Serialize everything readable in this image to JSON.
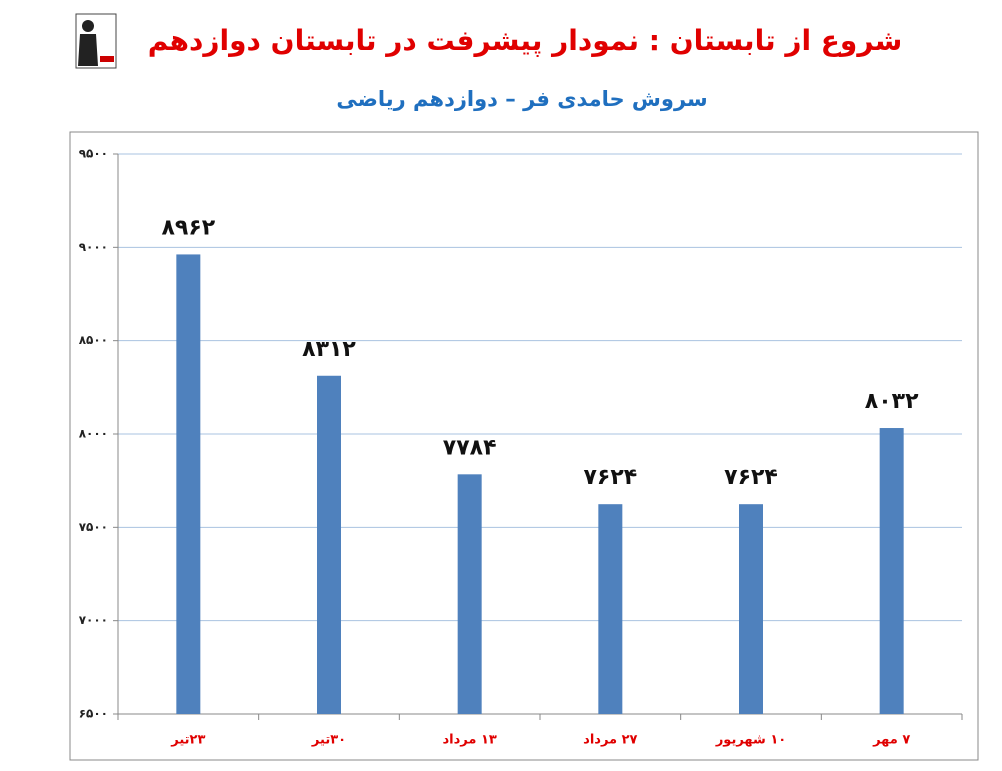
{
  "chart_data": {
    "type": "bar",
    "title": "شروع از تابستان : نمودار پیشرفت در تابستان دوازدهم",
    "subtitle": "سروش حامدی فر – دوازدهم ریاضی",
    "categories": [
      "۲۳تیر",
      "۳۰تیر",
      "۱۳ مرداد",
      "۲۷ مرداد",
      "۱۰ شهریور",
      "۷ مهر"
    ],
    "values": [
      8962,
      8312,
      7784,
      7624,
      7624,
      8032
    ],
    "value_labels": [
      "۸۹۶۲",
      "۸۳۱۲",
      "۷۷۸۴",
      "۷۶۲۴",
      "۷۶۲۴",
      "۸۰۳۲"
    ],
    "color": "#4f81bd",
    "ylim": [
      6500,
      9500
    ],
    "yticks": [
      {
        "value": 6500,
        "label": "۶۵۰۰"
      },
      {
        "value": 7000,
        "label": "۷۰۰۰"
      },
      {
        "value": 7500,
        "label": "۷۵۰۰"
      },
      {
        "value": 8000,
        "label": "۸۰۰۰"
      },
      {
        "value": 8500,
        "label": "۸۵۰۰"
      },
      {
        "value": 9000,
        "label": "۹۰۰۰"
      },
      {
        "value": 9500,
        "label": "۹۵۰۰"
      }
    ],
    "grid": true
  }
}
